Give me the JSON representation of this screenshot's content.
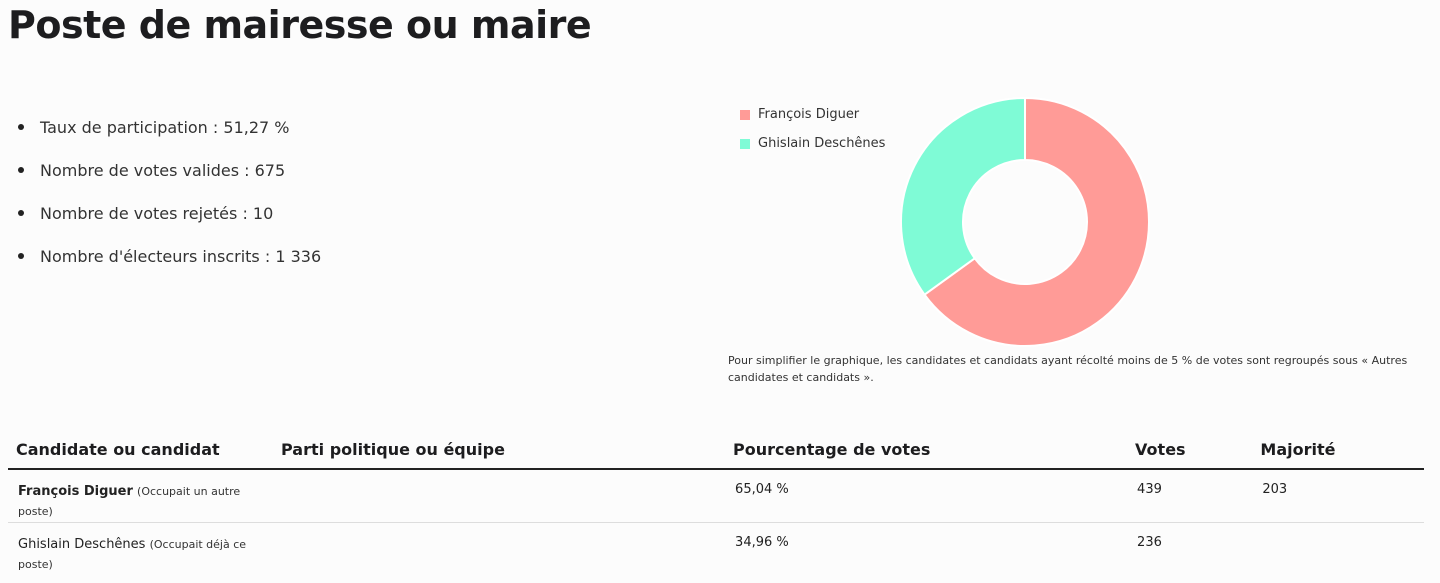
{
  "page": {
    "title": "Poste de mairesse ou maire"
  },
  "stats": [
    "Taux de participation : 51,27 %",
    "Nombre de votes valides : 675",
    "Nombre de votes rejetés : 10",
    "Nombre d'électeurs inscrits : 1 336"
  ],
  "chart_data": {
    "type": "pie",
    "categories": [
      "François Diguer",
      "Ghislain Deschênes"
    ],
    "values": [
      65.04,
      34.96
    ],
    "colors": [
      "#ff9b97",
      "#7ffbd6"
    ],
    "legend_position": "top-left"
  },
  "chart_note": "Pour simplifier le graphique, les candidates et candidats ayant récolté moins de 5 % de votes sont regroupés sous « Autres candidates et candidats ».",
  "table": {
    "headers": [
      "Candidate ou candidat",
      "Parti politique ou équipe",
      "Pourcentage de votes",
      "Votes",
      "Majorité"
    ],
    "rows": [
      {
        "name": "François Diguer",
        "note": "(Occupait un autre poste)",
        "party": "",
        "percent": "65,04 %",
        "votes": "439",
        "majority": "203"
      },
      {
        "name": "Ghislain Deschênes",
        "note": "(Occupait déjà ce poste)",
        "party": "",
        "percent": "34,96 %",
        "votes": "236",
        "majority": ""
      }
    ]
  }
}
